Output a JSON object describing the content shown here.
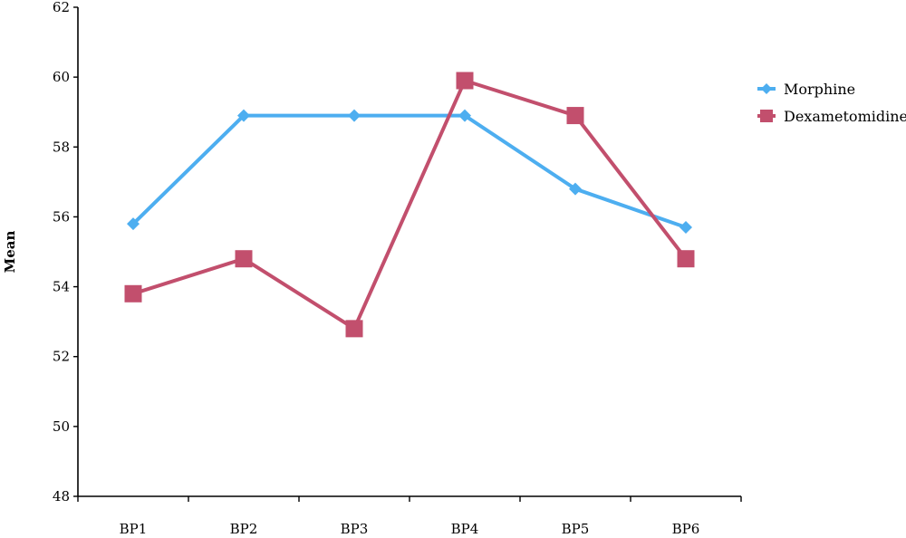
{
  "chart_data": {
    "type": "line",
    "title": "",
    "xlabel": "",
    "ylabel": "Mean",
    "categories": [
      "BP1",
      "BP2",
      "BP3",
      "BP4",
      "BP5",
      "BP6"
    ],
    "ylim": [
      48,
      62
    ],
    "yticks": [
      48,
      50,
      52,
      54,
      56,
      58,
      60,
      62
    ],
    "grid": false,
    "legend_position": "right",
    "series": [
      {
        "name": "Morphine",
        "color": "#4daef0",
        "marker": "diamond",
        "values": [
          55.8,
          58.9,
          58.9,
          58.9,
          56.8,
          55.7
        ]
      },
      {
        "name": "Dexametomidine",
        "color": "#c24f6d",
        "marker": "square",
        "values": [
          53.8,
          54.8,
          52.8,
          59.9,
          58.9,
          54.8
        ]
      }
    ]
  }
}
